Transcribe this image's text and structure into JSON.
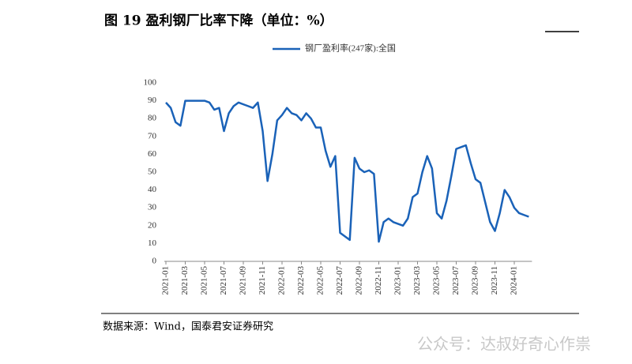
{
  "chart_data": {
    "type": "line",
    "title": "图 19 盈利钢厂比率下降（单位：%）",
    "source": "数据来源：Wind，国泰君安证券研究",
    "watermark": "公众号：达叔好奇心作祟",
    "categories": [
      "2021-01",
      null,
      null,
      null,
      "2021-03",
      null,
      null,
      null,
      "2021-05",
      null,
      null,
      null,
      "2021-07",
      null,
      null,
      null,
      "2021-09",
      null,
      null,
      null,
      "2021-11",
      null,
      null,
      null,
      "2022-01",
      null,
      null,
      null,
      "2022-03",
      null,
      null,
      null,
      "2022-05",
      null,
      null,
      null,
      "2022-07",
      null,
      null,
      null,
      "2022-09",
      null,
      null,
      null,
      "2022-11",
      null,
      null,
      null,
      "2023-01",
      null,
      null,
      null,
      "2023-03",
      null,
      null,
      null,
      "2023-05",
      null,
      null,
      null,
      "2023-07",
      null,
      null,
      null,
      "2023-09",
      null,
      null,
      null,
      "2023-11",
      null,
      null,
      null,
      "2024-01",
      null,
      null,
      null
    ],
    "series": [
      {
        "name": "钢厂盈利率(247家):全国",
        "color": "#1a62b8",
        "values": [
          89,
          86,
          78,
          76,
          90,
          90,
          90,
          90,
          90,
          89,
          85,
          86,
          73,
          83,
          87,
          89,
          88,
          87,
          86,
          89,
          73,
          45,
          60,
          79,
          82,
          86,
          83,
          82,
          79,
          83,
          80,
          75,
          75,
          62,
          53,
          59,
          16,
          14,
          12,
          58,
          52,
          50,
          51,
          49,
          11,
          22,
          24,
          22,
          21,
          20,
          24,
          36,
          38,
          50,
          59,
          52,
          27,
          24,
          34,
          48,
          63,
          64,
          65,
          55,
          46,
          44,
          33,
          22,
          17,
          27,
          40,
          36,
          30,
          27,
          26,
          25
        ]
      }
    ],
    "ylim": [
      0,
      100
    ],
    "yticks": [
      0,
      10,
      20,
      30,
      40,
      50,
      60,
      70,
      80,
      90,
      100
    ],
    "legend": "top"
  }
}
